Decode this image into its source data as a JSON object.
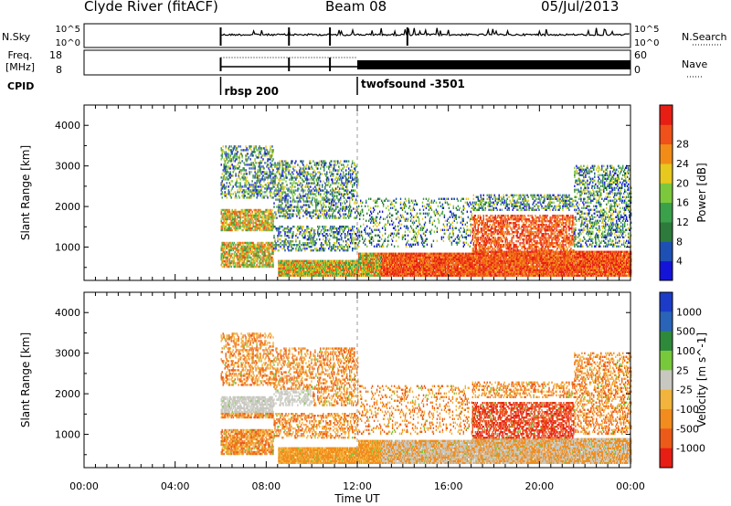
{
  "header": {
    "station": "Clyde River (fitACF)",
    "beam": "Beam 08",
    "date": "05/Jul/2013"
  },
  "colors": {
    "power_scale": [
      "#1414d8",
      "#1e50b4",
      "#2e7a3c",
      "#3aa04a",
      "#7cc83c",
      "#e6c81e",
      "#f28c18",
      "#f0501a",
      "#e61e14"
    ],
    "velocity_scale": [
      "#1c3cc8",
      "#2a64b8",
      "#2e8a3a",
      "#78c83c",
      "#c8c8c0",
      "#f2b43c",
      "#f28c1e",
      "#ec5a1a",
      "#e61e14"
    ]
  },
  "chart_data": [
    {
      "type": "line",
      "panel": "noise",
      "labels_left": [
        "N.Sky",
        "10^5",
        "10^0"
      ],
      "labels_right": [
        "10^5",
        "10^0",
        "N.Search"
      ],
      "markers": [
        "06:00",
        "09:00",
        "10:48",
        "14:12"
      ],
      "description_series": [
        "N.Sky",
        "N.Search"
      ]
    },
    {
      "type": "line",
      "panel": "frequency",
      "left_label": "Freq.\n[MHz]",
      "left_ticks": [
        "18",
        "8"
      ],
      "right_ticks": [
        "60",
        "0"
      ],
      "right_label": "Nave",
      "cpid_label": "CPID",
      "cpid": [
        {
          "start": "06:00",
          "name": "rbsp 200"
        },
        {
          "start": "12:00",
          "name": "twofsound -3501"
        }
      ]
    },
    {
      "type": "heatmap",
      "panel": "power",
      "ylabel": "Slant Range [km]",
      "yticks": [
        1000,
        2000,
        3000,
        4000
      ],
      "ylim": [
        180,
        4500
      ],
      "colorbar_label": "Power [dB]",
      "colorbar_ticks": [
        4,
        8,
        12,
        16,
        20,
        24,
        28
      ]
    },
    {
      "type": "heatmap",
      "panel": "velocity",
      "ylabel": "Slant Range [km]",
      "yticks": [
        1000,
        2000,
        3000,
        4000
      ],
      "ylim": [
        180,
        4500
      ],
      "colorbar_label": "Velocity [m s^-1]",
      "colorbar_ticks": [
        1000,
        500,
        100,
        25,
        -25,
        -100,
        -500,
        -1000
      ]
    },
    {
      "type": "axis",
      "xlabel": "Time UT",
      "xticks": [
        "00:00",
        "04:00",
        "08:00",
        "12:00",
        "16:00",
        "20:00",
        "00:00"
      ],
      "xlim_hours": [
        0,
        24
      ]
    }
  ]
}
